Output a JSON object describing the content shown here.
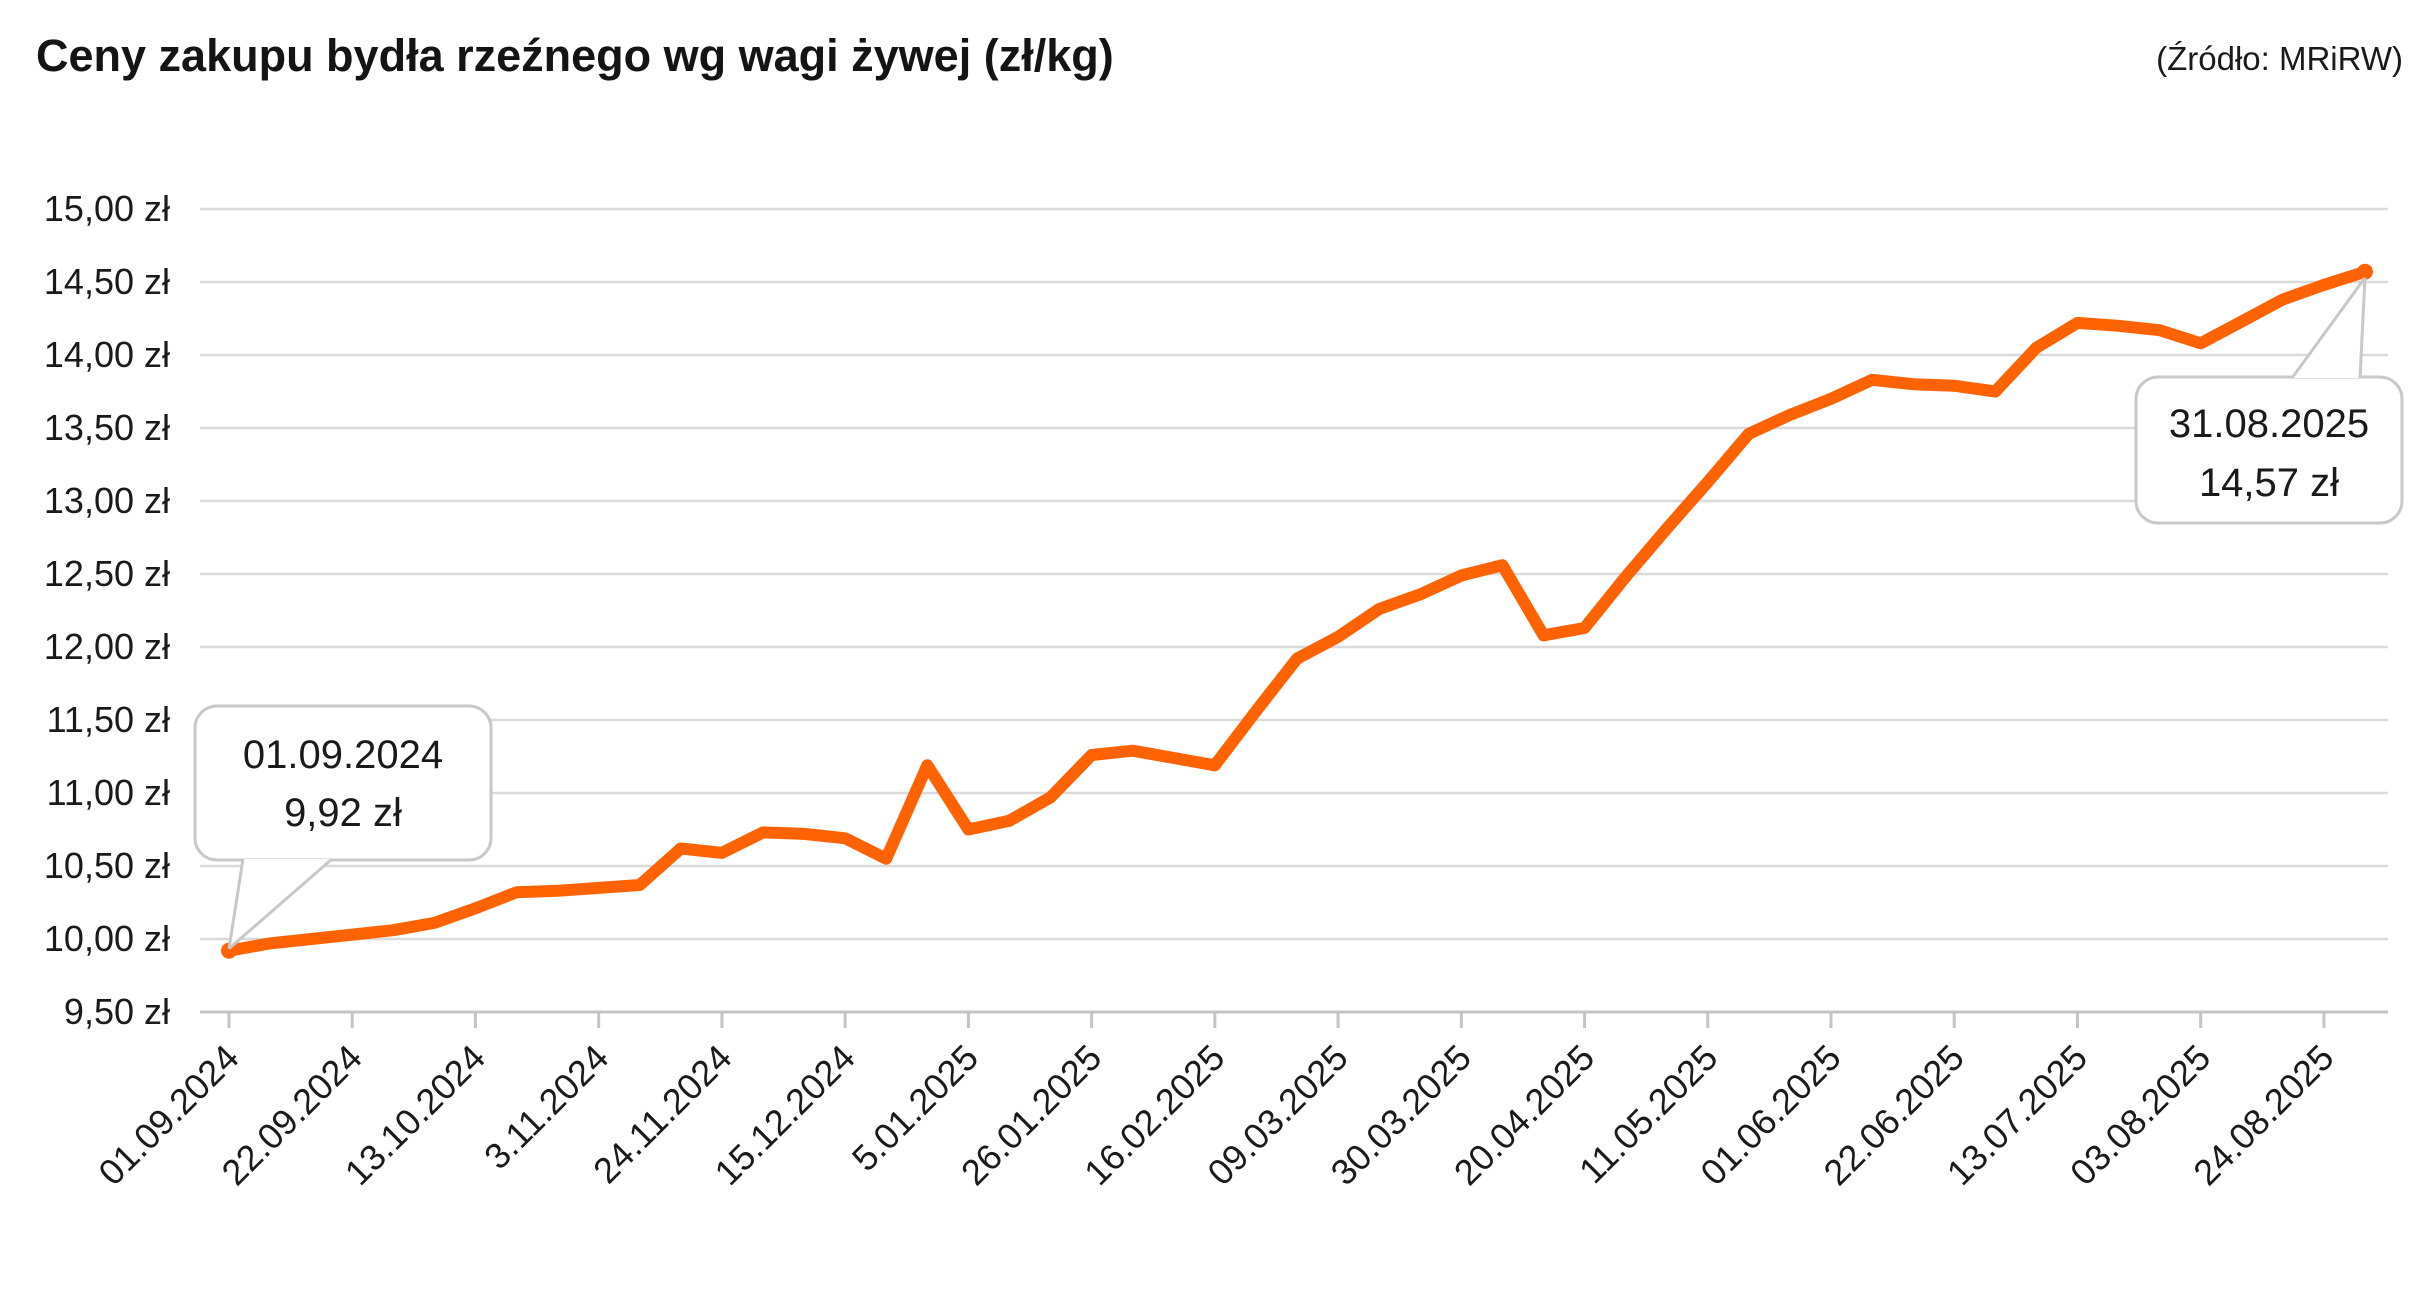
{
  "chart": {
    "title": "Ceny zakupu bydła rzeźnego wg wagi żywej (zł/kg)",
    "source": "(Źródło: MRiRW)"
  },
  "chart_data": {
    "type": "line",
    "title": "Ceny zakupu bydła rzeźnego wg wagi żywej (zł/kg)",
    "source": "(Źródło: MRiRW)",
    "unit": "zł/kg",
    "interval": "weekly",
    "grid": "horizontal",
    "legend": "none",
    "ylim": [
      9.5,
      15
    ],
    "y_ticks": [
      {
        "value": 15.0,
        "label": "15,00 zł"
      },
      {
        "value": 14.5,
        "label": "14,50 zł"
      },
      {
        "value": 14.0,
        "label": "14,00 zł"
      },
      {
        "value": 13.5,
        "label": "13,50 zł"
      },
      {
        "value": 13.0,
        "label": "13,00 zł"
      },
      {
        "value": 12.5,
        "label": "12,50 zł"
      },
      {
        "value": 12.0,
        "label": "12,00 zł"
      },
      {
        "value": 11.5,
        "label": "11,50 zł"
      },
      {
        "value": 11.0,
        "label": "11,00 zł"
      },
      {
        "value": 10.5,
        "label": "10,50 zł"
      },
      {
        "value": 10.0,
        "label": "10,00 zł"
      },
      {
        "value": 9.5,
        "label": "9,50 zł"
      }
    ],
    "x_tick_labels": [
      "01.09.2024",
      "22.09.2024",
      "13.10.2024",
      "3.11.2024",
      "24.11.2024",
      "15.12.2024",
      "5.01.2025",
      "26.01.2025",
      "16.02.2025",
      "09.03.2025",
      "30.03.2025",
      "20.04.2025",
      "11.05.2025",
      "01.06.2025",
      "22.06.2025",
      "13.07.2025",
      "03.08.2025",
      "24.08.2025"
    ],
    "x_ticks_every_n_weeks": 3,
    "values": [
      9.92,
      9.97,
      10.0,
      10.03,
      10.06,
      10.11,
      10.21,
      10.32,
      10.33,
      10.35,
      10.37,
      10.62,
      10.59,
      10.73,
      10.72,
      10.69,
      10.55,
      11.19,
      10.75,
      10.81,
      10.97,
      11.26,
      11.29,
      11.24,
      11.19,
      11.56,
      11.92,
      12.07,
      12.26,
      12.36,
      12.49,
      12.56,
      12.08,
      12.13,
      12.48,
      12.81,
      13.13,
      13.46,
      13.59,
      13.7,
      13.83,
      13.8,
      13.79,
      13.75,
      14.05,
      14.22,
      14.2,
      14.17,
      14.08,
      14.23,
      14.38,
      14.48,
      14.57
    ],
    "annotations": [
      {
        "date": "01.09.2024",
        "value_label": "9,92 zł",
        "point_index": 0
      },
      {
        "date": "31.08.2025",
        "value_label": "14,57 zł",
        "point_index": 52
      }
    ],
    "colors": {
      "line": "#FF6200",
      "grid": "#DADADA",
      "axis": "#C4C4C4",
      "text": "#1A1A1A",
      "callout_border": "#C8C8C8",
      "callout_fill": "#FFFFFF"
    }
  }
}
